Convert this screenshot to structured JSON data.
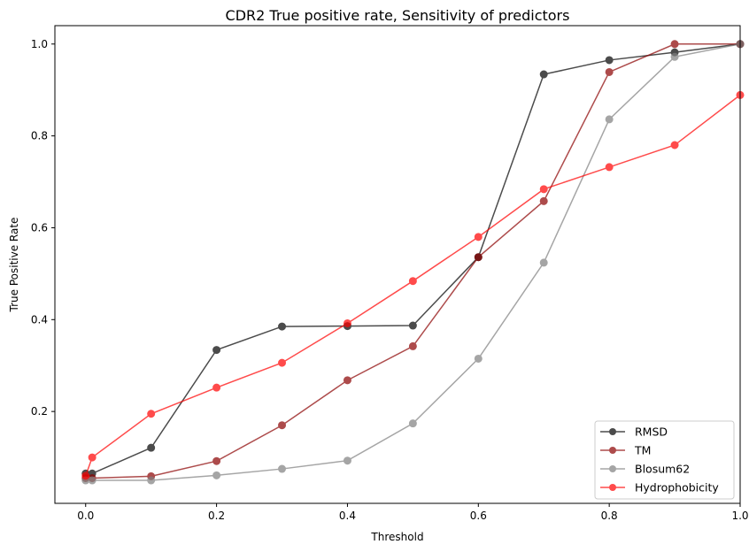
{
  "chart_data": {
    "type": "line",
    "title": "CDR2 True positive rate, Sensitivity of predictors",
    "xlabel": "Threshold",
    "ylabel": "True Positive Rate",
    "xlim": [
      -0.047,
      1.0
    ],
    "ylim": [
      0.0,
      1.04
    ],
    "xticks": [
      0.0,
      0.2,
      0.4,
      0.6,
      0.8,
      1.0
    ],
    "xtick_labels": [
      "0.0",
      "0.2",
      "0.4",
      "0.6",
      "0.8",
      "1.0"
    ],
    "yticks": [
      0.2,
      0.4,
      0.6,
      0.8,
      1.0
    ],
    "ytick_labels": [
      "0.2",
      "0.4",
      "0.6",
      "0.8",
      "1.0"
    ],
    "grid": false,
    "legend": "lower-right",
    "x": [
      0.0,
      0.01,
      0.1,
      0.2,
      0.3,
      0.4,
      0.5,
      0.6,
      0.7,
      0.8,
      0.9,
      1.0
    ],
    "series": [
      {
        "name": "RMSD",
        "color": "#000000",
        "values": [
          0.065,
          0.065,
          0.121,
          0.334,
          0.385,
          0.386,
          0.387,
          0.536,
          0.934,
          0.965,
          0.982,
          1.0
        ]
      },
      {
        "name": "TM",
        "color": "#8b0000",
        "values": [
          0.055,
          0.055,
          0.059,
          0.092,
          0.17,
          0.268,
          0.342,
          0.536,
          0.658,
          0.939,
          1.0,
          1.0
        ]
      },
      {
        "name": "Blosum62",
        "color": "#808080",
        "values": [
          0.05,
          0.05,
          0.05,
          0.061,
          0.075,
          0.093,
          0.174,
          0.315,
          0.524,
          0.836,
          0.972,
          1.0
        ]
      },
      {
        "name": "Hydrophobicity",
        "color": "#ff0000",
        "values": [
          0.06,
          0.1,
          0.195,
          0.252,
          0.306,
          0.392,
          0.484,
          0.58,
          0.684,
          0.732,
          0.78,
          0.889
        ]
      }
    ]
  }
}
